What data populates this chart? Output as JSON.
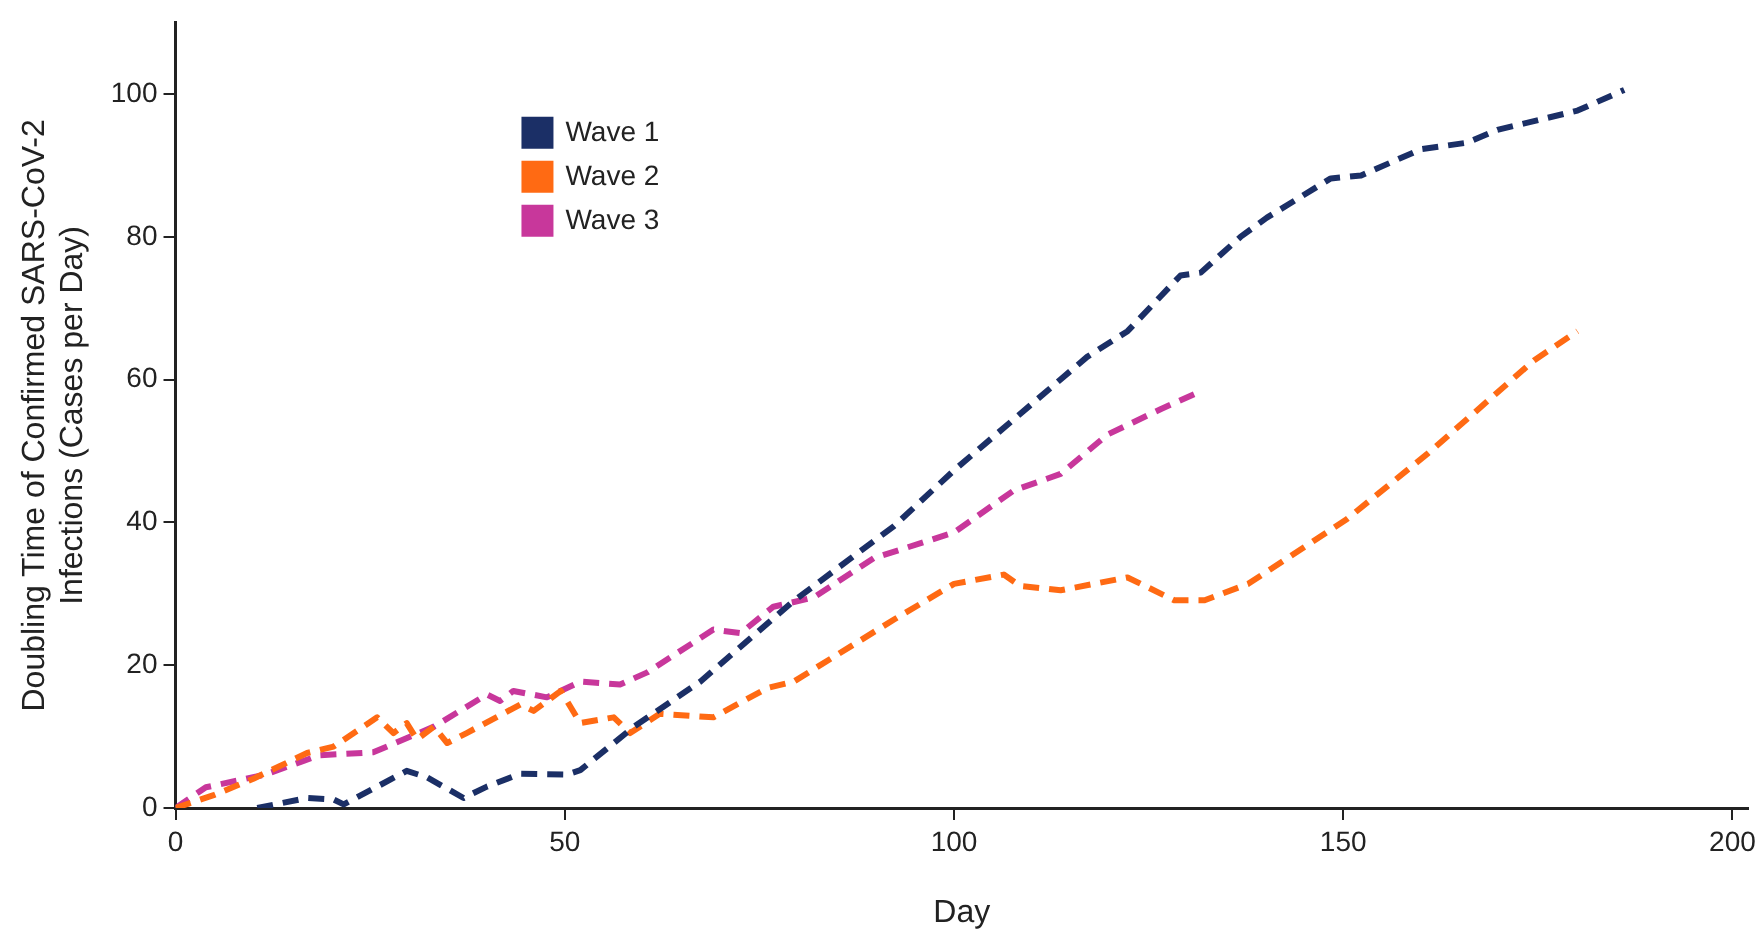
{
  "chart_data": {
    "type": "line",
    "xlabel": "Day",
    "ylabel": "Doubling Time of Confirmed SARS-CoV-2 Infections (Cases per Day)",
    "xlim": [
      0,
      202
    ],
    "xticks": [
      0,
      50,
      100,
      150,
      200
    ],
    "ylim": [
      0,
      110
    ],
    "yticks": [
      0,
      20,
      40,
      60,
      80,
      100
    ],
    "grid": false,
    "legend": "top left",
    "marker": "none",
    "line_style": "dashed",
    "series": [
      {
        "name": "Wave 1",
        "color": "#1b2f66",
        "x": [
          10.5,
          16.9,
          20.3,
          21.6,
          29.7,
          32.3,
          37,
          40,
          44.3,
          50.3,
          52,
          58.9,
          67.4,
          79.4,
          92.3,
          100,
          117.1,
          122.3,
          129.1,
          131.7,
          136.8,
          140.2,
          148.4,
          152.3,
          160,
          165.9,
          169.8,
          180.1,
          186.1
        ],
        "values": [
          0,
          1.4,
          1.2,
          0.5,
          5.2,
          4.3,
          1.4,
          3,
          4.8,
          4.7,
          5.3,
          11.4,
          17.7,
          29,
          39.5,
          47.3,
          63.2,
          66.8,
          74.6,
          75,
          80,
          82.7,
          88.2,
          88.6,
          92.3,
          93.2,
          95,
          97.7,
          100.6
        ]
      },
      {
        "name": "Wave 2",
        "color": "#ff6a13",
        "x": [
          0,
          4.9,
          10,
          16.9,
          20.3,
          25.9,
          28,
          29.7,
          31,
          33.2,
          34.9,
          37.4,
          44.3,
          46,
          49.5,
          52,
          56.3,
          58.4,
          62.2,
          69.1,
          76,
          79.4,
          92.3,
          100,
          106.4,
          108.5,
          113.7,
          122.3,
          128.3,
          132.2,
          137.8,
          150.5,
          160.8,
          174.5,
          180.1
        ],
        "values": [
          0,
          1.8,
          4.1,
          7.7,
          8.6,
          12.7,
          10.5,
          11.9,
          9.6,
          11.4,
          9.1,
          10.5,
          14.5,
          13.6,
          16.4,
          11.9,
          12.7,
          10.5,
          13.2,
          12.7,
          16.8,
          17.7,
          26.4,
          31.4,
          32.7,
          31.1,
          30.5,
          32.3,
          29.1,
          29.1,
          31.4,
          40.5,
          49.6,
          62.7,
          66.8
        ]
      },
      {
        "name": "Wave 3",
        "color": "#c8379b",
        "x": [
          0,
          3.9,
          8.2,
          11.6,
          18.5,
          25.4,
          33.2,
          40,
          41.7,
          43.4,
          47.7,
          52,
          57.1,
          60.6,
          69.1,
          72.6,
          76.8,
          82,
          89.7,
          100,
          107.7,
          113.7,
          119.7,
          126.6,
          131.3
        ],
        "values": [
          0,
          2.9,
          3.9,
          4.7,
          7.4,
          7.8,
          11.4,
          15.9,
          15,
          16.4,
          15.5,
          17.7,
          17.3,
          19,
          25,
          24.5,
          28.2,
          29.5,
          35,
          38.6,
          44.5,
          46.8,
          52.3,
          55.9,
          58.2
        ]
      }
    ]
  }
}
